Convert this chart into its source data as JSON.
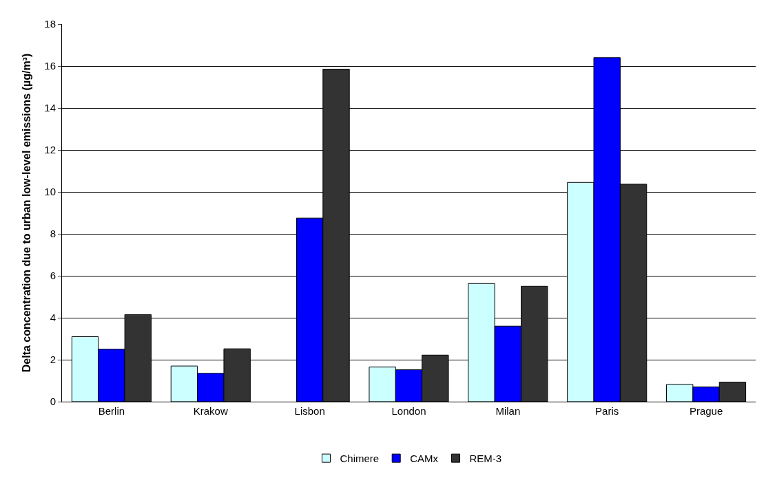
{
  "chart_data": {
    "type": "bar",
    "ylabel": "Delta concentration due to urban low-level emissions (µg/m³)",
    "categories": [
      "Berlin",
      "Krakow",
      "Lisbon",
      "London",
      "Milan",
      "Paris",
      "Prague"
    ],
    "series": [
      {
        "name": "Chimere",
        "color": "#ccffff",
        "values": [
          3.1,
          1.7,
          null,
          1.65,
          5.63,
          10.45,
          0.82
        ]
      },
      {
        "name": "CAMx",
        "color": "#0000ff",
        "values": [
          2.5,
          1.35,
          8.75,
          1.52,
          3.6,
          16.4,
          0.7
        ]
      },
      {
        "name": "REM-3",
        "color": "#333333",
        "values": [
          4.15,
          2.52,
          15.85,
          2.22,
          5.5,
          10.37,
          0.93
        ]
      }
    ],
    "ylim": [
      0,
      18
    ],
    "yticks": [
      0,
      2,
      4,
      6,
      8,
      10,
      12,
      14,
      16,
      18
    ],
    "grid": "y",
    "legend": "bottom"
  }
}
